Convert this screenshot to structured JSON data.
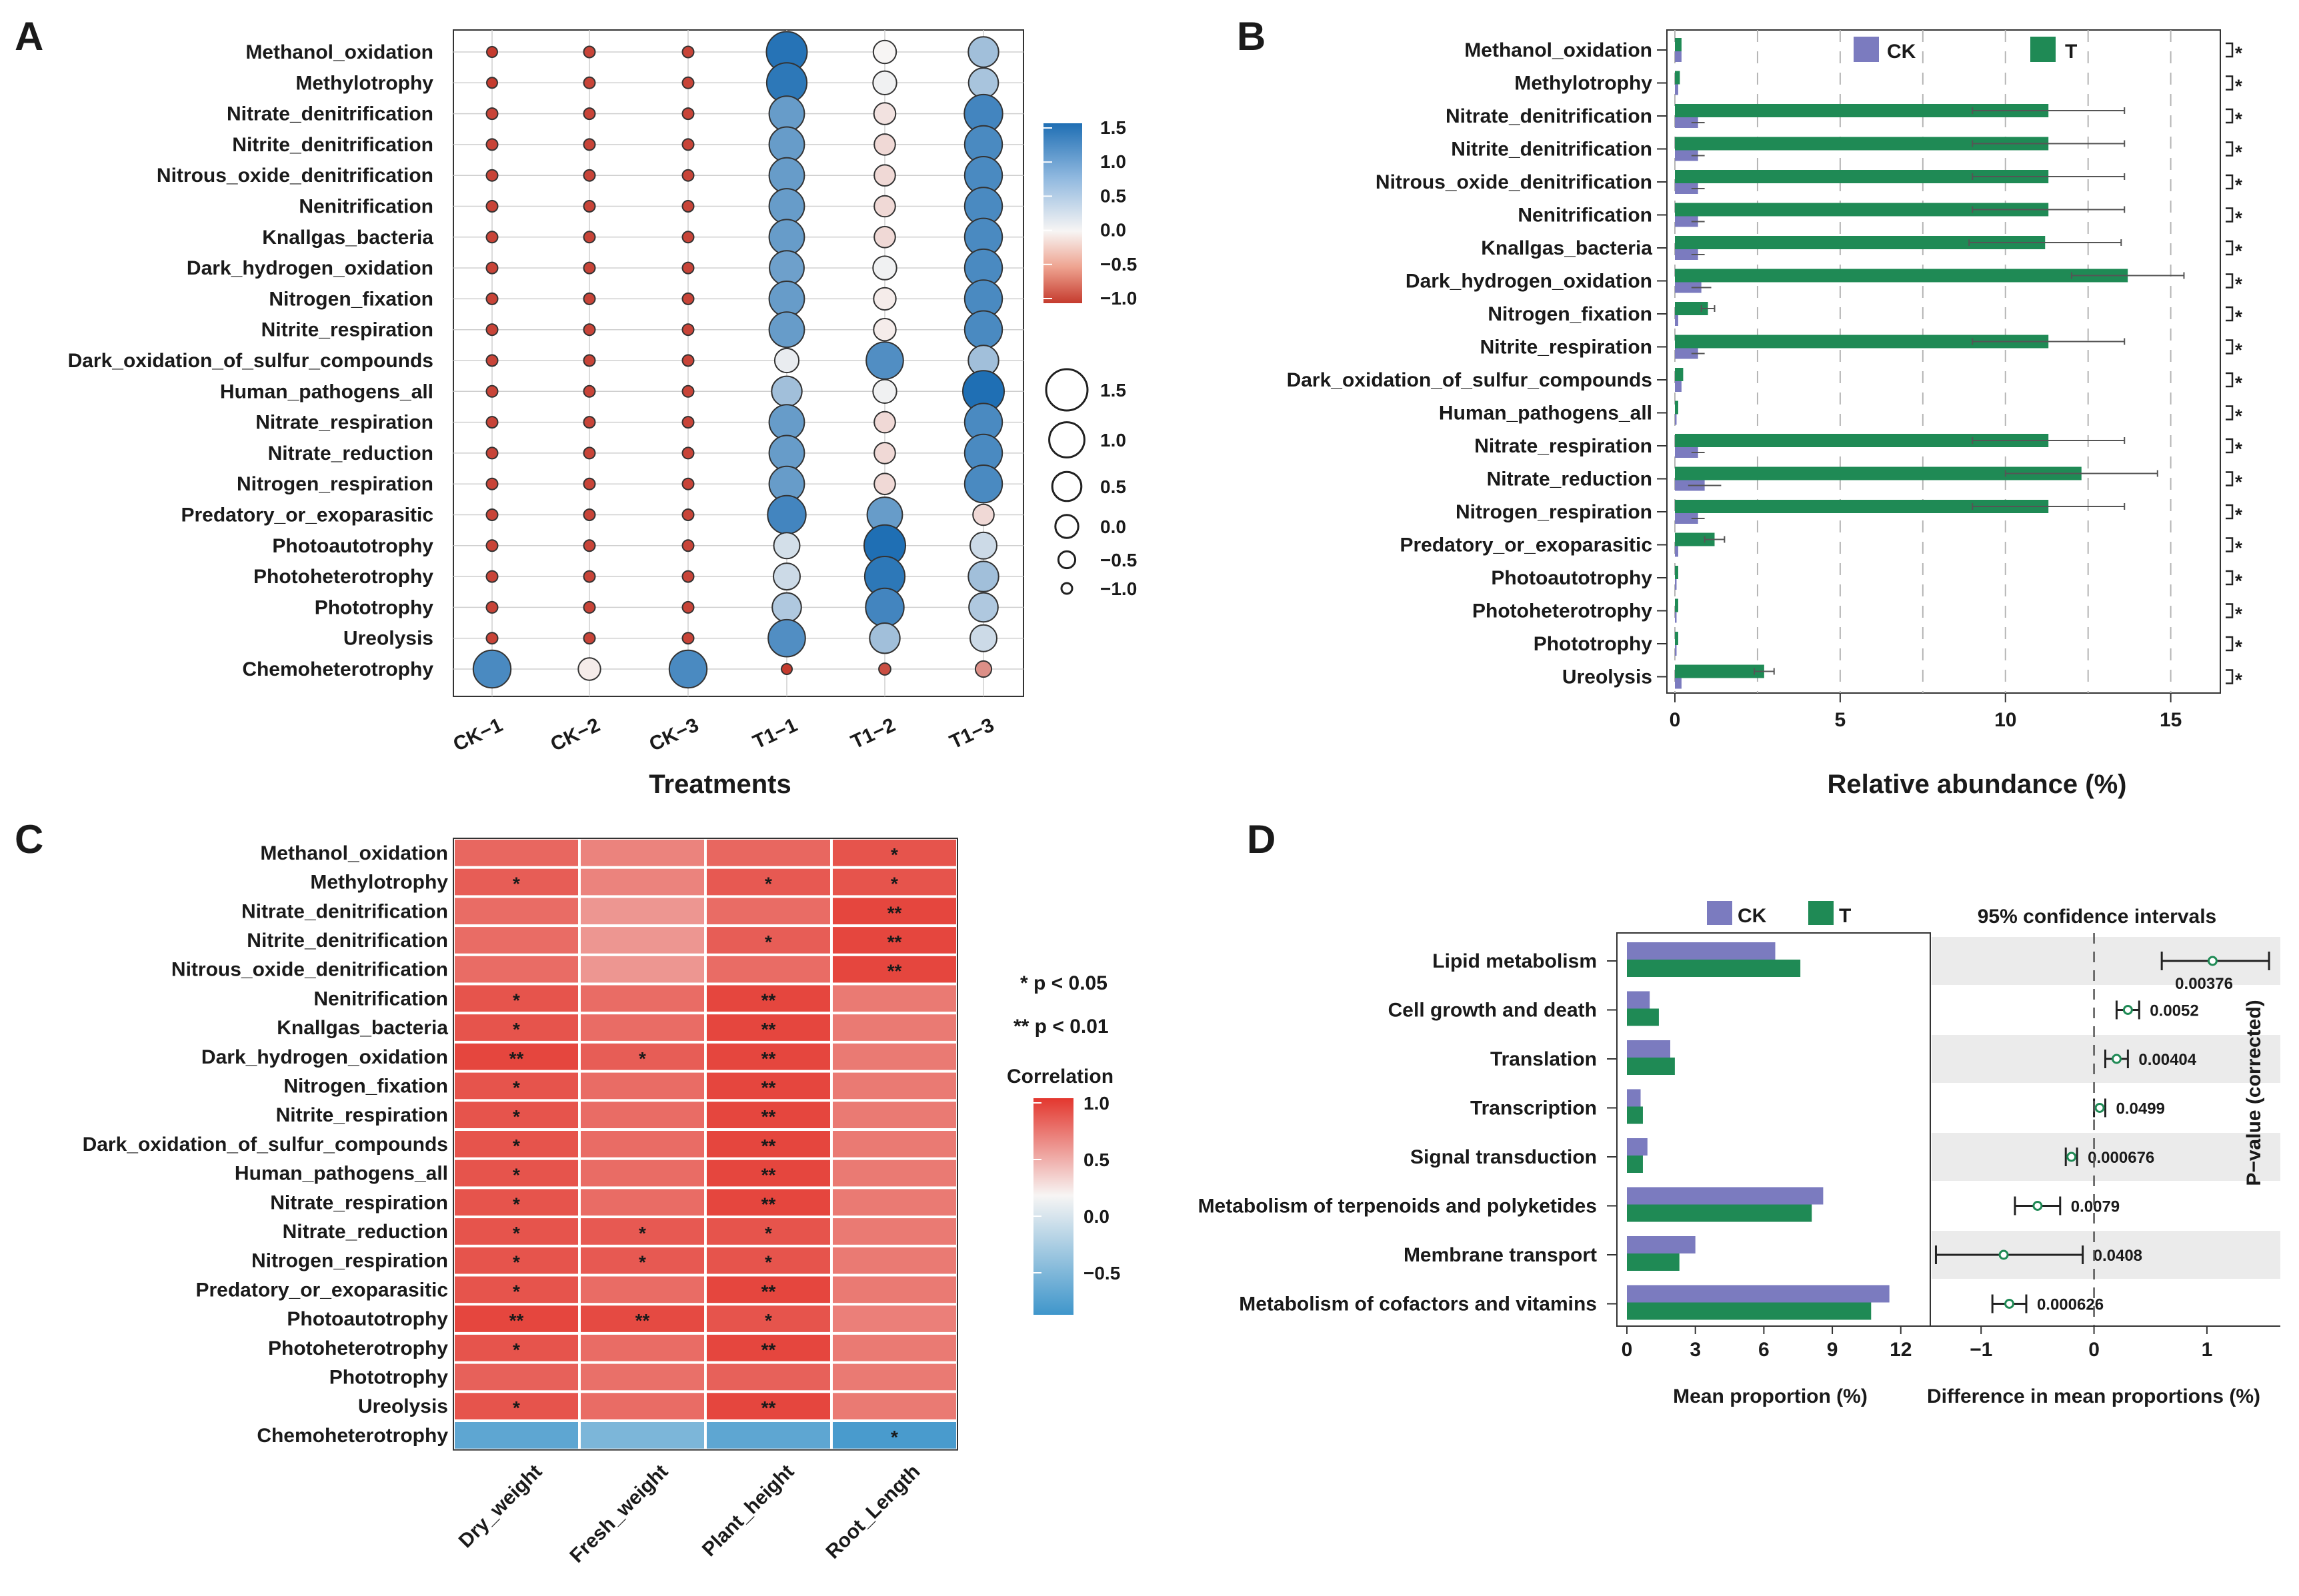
{
  "palette": {
    "blue": "#1f6fb4",
    "light_blue": "#c9def0",
    "white": "#f7f5f4",
    "light_red": "#f2b3a4",
    "red": "#c53b2e",
    "bar_ck": "#7b7bbf",
    "bar_t": "#1f8a55",
    "heat_red": "#e3372e",
    "heat_blue": "#3f96cb"
  },
  "panel_labels": {
    "a": "A",
    "b": "B",
    "c": "C",
    "d": "D"
  },
  "chart_data": [
    {
      "id": "A",
      "type": "bubble",
      "rows": [
        "Methanol_oxidation",
        "Methylotrophy",
        "Nitrate_denitrification",
        "Nitrite_denitrification",
        "Nitrous_oxide_denitrification",
        "Nenitrification",
        "Knallgas_bacteria",
        "Dark_hydrogen_oxidation",
        "Nitrogen_fixation",
        "Nitrite_respiration",
        "Dark_oxidation_of_sulfur_compounds",
        "Human_pathogens_all",
        "Nitrate_respiration",
        "Nitrate_reduction",
        "Nitrogen_respiration",
        "Predatory_or_exoparasitic",
        "Photoautotrophy",
        "Photoheterotrophy",
        "Phototrophy",
        "Ureolysis",
        "Chemoheterotrophy"
      ],
      "columns": [
        "CK−1",
        "CK−2",
        "CK−3",
        "T1−1",
        "T1−2",
        "T1−3"
      ],
      "values": [
        [
          -1.0,
          -0.95,
          -0.95,
          1.45,
          0.0,
          0.6
        ],
        [
          -1.0,
          -0.95,
          -0.95,
          1.4,
          0.05,
          0.55
        ],
        [
          -0.95,
          -0.95,
          -0.95,
          1.0,
          -0.1,
          1.25
        ],
        [
          -0.95,
          -0.95,
          -0.95,
          1.0,
          -0.15,
          1.2
        ],
        [
          -0.95,
          -0.95,
          -0.95,
          1.0,
          -0.15,
          1.2
        ],
        [
          -0.95,
          -0.95,
          -0.95,
          1.0,
          -0.15,
          1.2
        ],
        [
          -0.95,
          -0.95,
          -0.95,
          1.0,
          -0.15,
          1.2
        ],
        [
          -0.95,
          -0.95,
          -0.95,
          0.95,
          0.05,
          1.2
        ],
        [
          -0.95,
          -0.95,
          -0.95,
          1.0,
          -0.05,
          1.2
        ],
        [
          -0.95,
          -0.95,
          -0.95,
          1.0,
          -0.05,
          1.2
        ],
        [
          -0.95,
          -0.95,
          -0.95,
          0.1,
          1.15,
          0.6
        ],
        [
          -0.95,
          -0.95,
          -0.95,
          0.6,
          0.05,
          1.5
        ],
        [
          -0.95,
          -0.95,
          -0.95,
          1.0,
          -0.15,
          1.2
        ],
        [
          -0.95,
          -0.95,
          -0.95,
          1.0,
          -0.15,
          1.2
        ],
        [
          -0.95,
          -0.95,
          -0.95,
          1.0,
          -0.15,
          1.2
        ],
        [
          -0.95,
          -0.95,
          -0.95,
          1.25,
          1.0,
          -0.15
        ],
        [
          -0.95,
          -0.95,
          -0.95,
          0.25,
          1.5,
          0.3
        ],
        [
          -0.95,
          -0.95,
          -0.95,
          0.3,
          1.4,
          0.6
        ],
        [
          -0.95,
          -0.95,
          -0.95,
          0.5,
          1.25,
          0.5
        ],
        [
          -0.95,
          -0.95,
          -0.95,
          1.15,
          0.6,
          0.3
        ],
        [
          1.2,
          -0.05,
          1.2,
          -1.0,
          -0.9,
          -0.55
        ]
      ],
      "xlabel": "Treatments",
      "color_legend_ticks": [
        "1.5",
        "1.0",
        "0.5",
        "0.0",
        "−0.5",
        "−1.0"
      ],
      "size_legend_ticks": [
        "1.5",
        "1.0",
        "0.5",
        "0.0",
        "−0.5",
        "−1.0"
      ],
      "color_range": [
        -1.0,
        1.5
      ]
    },
    {
      "id": "B",
      "type": "bar",
      "orientation": "horizontal",
      "categories": [
        "Methanol_oxidation",
        "Methylotrophy",
        "Nitrate_denitrification",
        "Nitrite_denitrification",
        "Nitrous_oxide_denitrification",
        "Nenitrification",
        "Knallgas_bacteria",
        "Dark_hydrogen_oxidation",
        "Nitrogen_fixation",
        "Nitrite_respiration",
        "Dark_oxidation_of_sulfur_compounds",
        "Human_pathogens_all",
        "Nitrate_respiration",
        "Nitrate_reduction",
        "Nitrogen_respiration",
        "Predatory_or_exoparasitic",
        "Photoautotrophy",
        "Photoheterotrophy",
        "Phototrophy",
        "Ureolysis"
      ],
      "series": [
        {
          "name": "CK",
          "values": [
            0.2,
            0.1,
            0.7,
            0.7,
            0.7,
            0.7,
            0.7,
            0.8,
            0.1,
            0.7,
            0.2,
            0.05,
            0.7,
            0.9,
            0.7,
            0.1,
            0.05,
            0.05,
            0.05,
            0.2
          ],
          "errors": [
            0.1,
            0.05,
            0.2,
            0.2,
            0.2,
            0.2,
            0.2,
            0.3,
            0.05,
            0.2,
            0.1,
            0.02,
            0.2,
            0.5,
            0.2,
            0.05,
            0.02,
            0.02,
            0.02,
            0.1
          ]
        },
        {
          "name": "T",
          "values": [
            0.2,
            0.15,
            11.3,
            11.3,
            11.3,
            11.3,
            11.2,
            13.7,
            1.0,
            11.3,
            0.25,
            0.1,
            11.3,
            12.3,
            11.3,
            1.2,
            0.1,
            0.1,
            0.1,
            2.7
          ],
          "errors": [
            0.05,
            0.05,
            2.3,
            2.3,
            2.3,
            2.3,
            2.3,
            1.7,
            0.2,
            2.3,
            0.05,
            0.02,
            2.3,
            2.3,
            2.3,
            0.3,
            0.02,
            0.02,
            0.02,
            0.3
          ]
        }
      ],
      "significance": "*",
      "xlabel": "Relative abundance (%)",
      "xticks": [
        "0",
        "5",
        "10",
        "15"
      ],
      "xlim": [
        0,
        16.5
      ],
      "legend": [
        "CK",
        "T"
      ]
    },
    {
      "id": "C",
      "type": "heatmap",
      "rows": [
        "Methanol_oxidation",
        "Methylotrophy",
        "Nitrate_denitrification",
        "Nitrite_denitrification",
        "Nitrous_oxide_denitrification",
        "Nenitrification",
        "Knallgas_bacteria",
        "Dark_hydrogen_oxidation",
        "Nitrogen_fixation",
        "Nitrite_respiration",
        "Dark_oxidation_of_sulfur_compounds",
        "Human_pathogens_all",
        "Nitrate_respiration",
        "Nitrate_reduction",
        "Nitrogen_respiration",
        "Predatory_or_exoparasitic",
        "Photoautotrophy",
        "Photoheterotrophy",
        "Phototrophy",
        "Ureolysis",
        "Chemoheterotrophy"
      ],
      "columns": [
        "Dry_weight",
        "Fresh_weight",
        "Plant_height",
        "Root_Length"
      ],
      "values": [
        [
          0.75,
          0.6,
          0.75,
          0.85
        ],
        [
          0.8,
          0.6,
          0.82,
          0.85
        ],
        [
          0.72,
          0.5,
          0.72,
          0.92
        ],
        [
          0.72,
          0.5,
          0.8,
          0.92
        ],
        [
          0.72,
          0.5,
          0.72,
          0.92
        ],
        [
          0.85,
          0.72,
          0.92,
          0.65
        ],
        [
          0.85,
          0.72,
          0.92,
          0.65
        ],
        [
          0.92,
          0.8,
          0.92,
          0.65
        ],
        [
          0.85,
          0.72,
          0.92,
          0.65
        ],
        [
          0.85,
          0.72,
          0.92,
          0.65
        ],
        [
          0.85,
          0.72,
          0.92,
          0.65
        ],
        [
          0.85,
          0.72,
          0.92,
          0.65
        ],
        [
          0.85,
          0.72,
          0.92,
          0.65
        ],
        [
          0.85,
          0.82,
          0.85,
          0.65
        ],
        [
          0.85,
          0.82,
          0.85,
          0.65
        ],
        [
          0.85,
          0.72,
          0.92,
          0.65
        ],
        [
          0.92,
          0.9,
          0.85,
          0.62
        ],
        [
          0.85,
          0.72,
          0.92,
          0.65
        ],
        [
          0.78,
          0.7,
          0.78,
          0.65
        ],
        [
          0.85,
          0.72,
          0.92,
          0.65
        ],
        [
          -0.75,
          -0.6,
          -0.75,
          -0.85
        ]
      ],
      "stars": [
        [
          "",
          "",
          "",
          "*"
        ],
        [
          "*",
          "",
          "*",
          "*"
        ],
        [
          "",
          "",
          "",
          "**"
        ],
        [
          "",
          "",
          "*",
          "**"
        ],
        [
          "",
          "",
          "",
          "**"
        ],
        [
          "*",
          "",
          "**",
          ""
        ],
        [
          "*",
          "",
          "**",
          ""
        ],
        [
          "**",
          "*",
          "**",
          ""
        ],
        [
          "*",
          "",
          "**",
          ""
        ],
        [
          "*",
          "",
          "**",
          ""
        ],
        [
          "*",
          "",
          "**",
          ""
        ],
        [
          "*",
          "",
          "**",
          ""
        ],
        [
          "*",
          "",
          "**",
          ""
        ],
        [
          "*",
          "*",
          "*",
          ""
        ],
        [
          "*",
          "*",
          "*",
          ""
        ],
        [
          "*",
          "",
          "**",
          ""
        ],
        [
          "**",
          "**",
          "*",
          ""
        ],
        [
          "*",
          "",
          "**",
          ""
        ],
        [
          "",
          "",
          "",
          ""
        ],
        [
          "*",
          "",
          "**",
          ""
        ],
        [
          "",
          "",
          "",
          "*"
        ]
      ],
      "legend_title": "Correlation",
      "legend_ticks": [
        "1.0",
        "0.5",
        "0.0",
        "−0.5"
      ],
      "sig_notes": [
        "* p < 0.05",
        "** p < 0.01"
      ]
    },
    {
      "id": "D",
      "type": "bar",
      "orientation": "horizontal",
      "categories": [
        "Lipid metabolism",
        "Cell growth and death",
        "Translation",
        "Transcription",
        "Signal transduction",
        "Metabolism of terpenoids and polyketides",
        "Membrane transport",
        "Metabolism of cofactors and vitamins"
      ],
      "series": [
        {
          "name": "CK",
          "values": [
            6.5,
            1.0,
            1.9,
            0.6,
            0.9,
            8.6,
            3.0,
            11.5
          ]
        },
        {
          "name": "T",
          "values": [
            7.6,
            1.4,
            2.1,
            0.7,
            0.7,
            8.1,
            2.3,
            10.7
          ]
        }
      ],
      "xticks": [
        "0",
        "3",
        "6",
        "9",
        "12"
      ],
      "xlim": [
        0,
        13
      ],
      "xlabel": "Mean proportion (%)",
      "legend": [
        "CK",
        "T"
      ],
      "ci": {
        "title": "95% confidence intervals",
        "xlabel": "Difference in mean proportions (%)",
        "side_label": "P−value (corrected)",
        "xticks": [
          "−1",
          "0",
          "1"
        ],
        "xlim": [
          -1.45,
          1.65
        ],
        "estimates": [
          1.05,
          0.3,
          0.2,
          0.05,
          -0.2,
          -0.5,
          -0.8,
          -0.75
        ],
        "lower": [
          0.6,
          0.2,
          0.1,
          0.0,
          -0.25,
          -0.7,
          -1.4,
          -0.9
        ],
        "upper": [
          1.55,
          0.4,
          0.3,
          0.1,
          -0.15,
          -0.3,
          -0.1,
          -0.6
        ],
        "pvalues": [
          "0.00376",
          "0.0052",
          "0.00404",
          "0.0499",
          "0.000676",
          "0.0079",
          "0.0408",
          "0.000626"
        ]
      }
    }
  ]
}
